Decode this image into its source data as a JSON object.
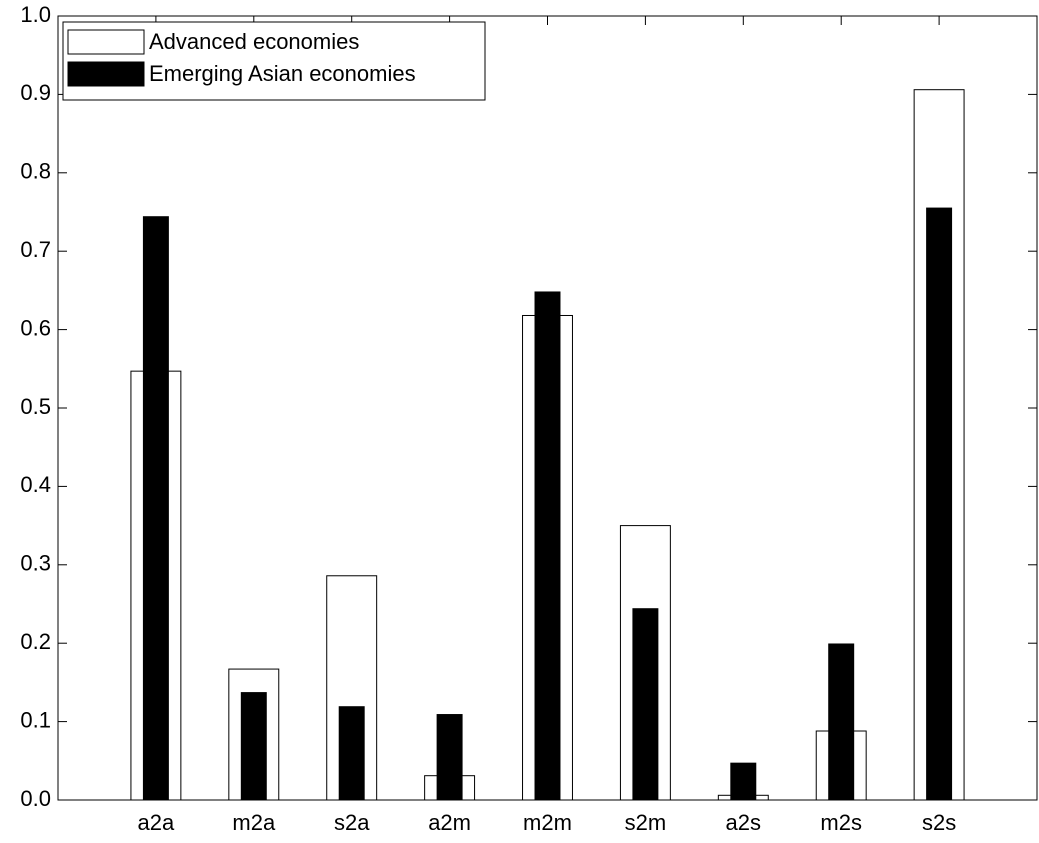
{
  "chart_data": {
    "type": "bar",
    "categories": [
      "a2a",
      "m2a",
      "s2a",
      "a2m",
      "m2m",
      "s2m",
      "a2s",
      "m2s",
      "s2s"
    ],
    "series": [
      {
        "name": "Advanced economies",
        "color": "#ffffff",
        "values": [
          0.547,
          0.167,
          0.286,
          0.031,
          0.618,
          0.35,
          0.006,
          0.088,
          0.906
        ]
      },
      {
        "name": "Emerging Asian economies",
        "color": "#000000",
        "values": [
          0.744,
          0.137,
          0.119,
          0.109,
          0.648,
          0.244,
          0.047,
          0.199,
          0.755
        ]
      }
    ],
    "ylim": [
      0,
      1
    ],
    "yticks": [
      {
        "value": 0,
        "label": "0.0"
      },
      0.1,
      0.2,
      0.3,
      0.4,
      0.5,
      0.6,
      0.7,
      0.8,
      0.9,
      {
        "value": 1,
        "label": "1.0"
      }
    ],
    "grid": false,
    "legend": "upper-left"
  }
}
